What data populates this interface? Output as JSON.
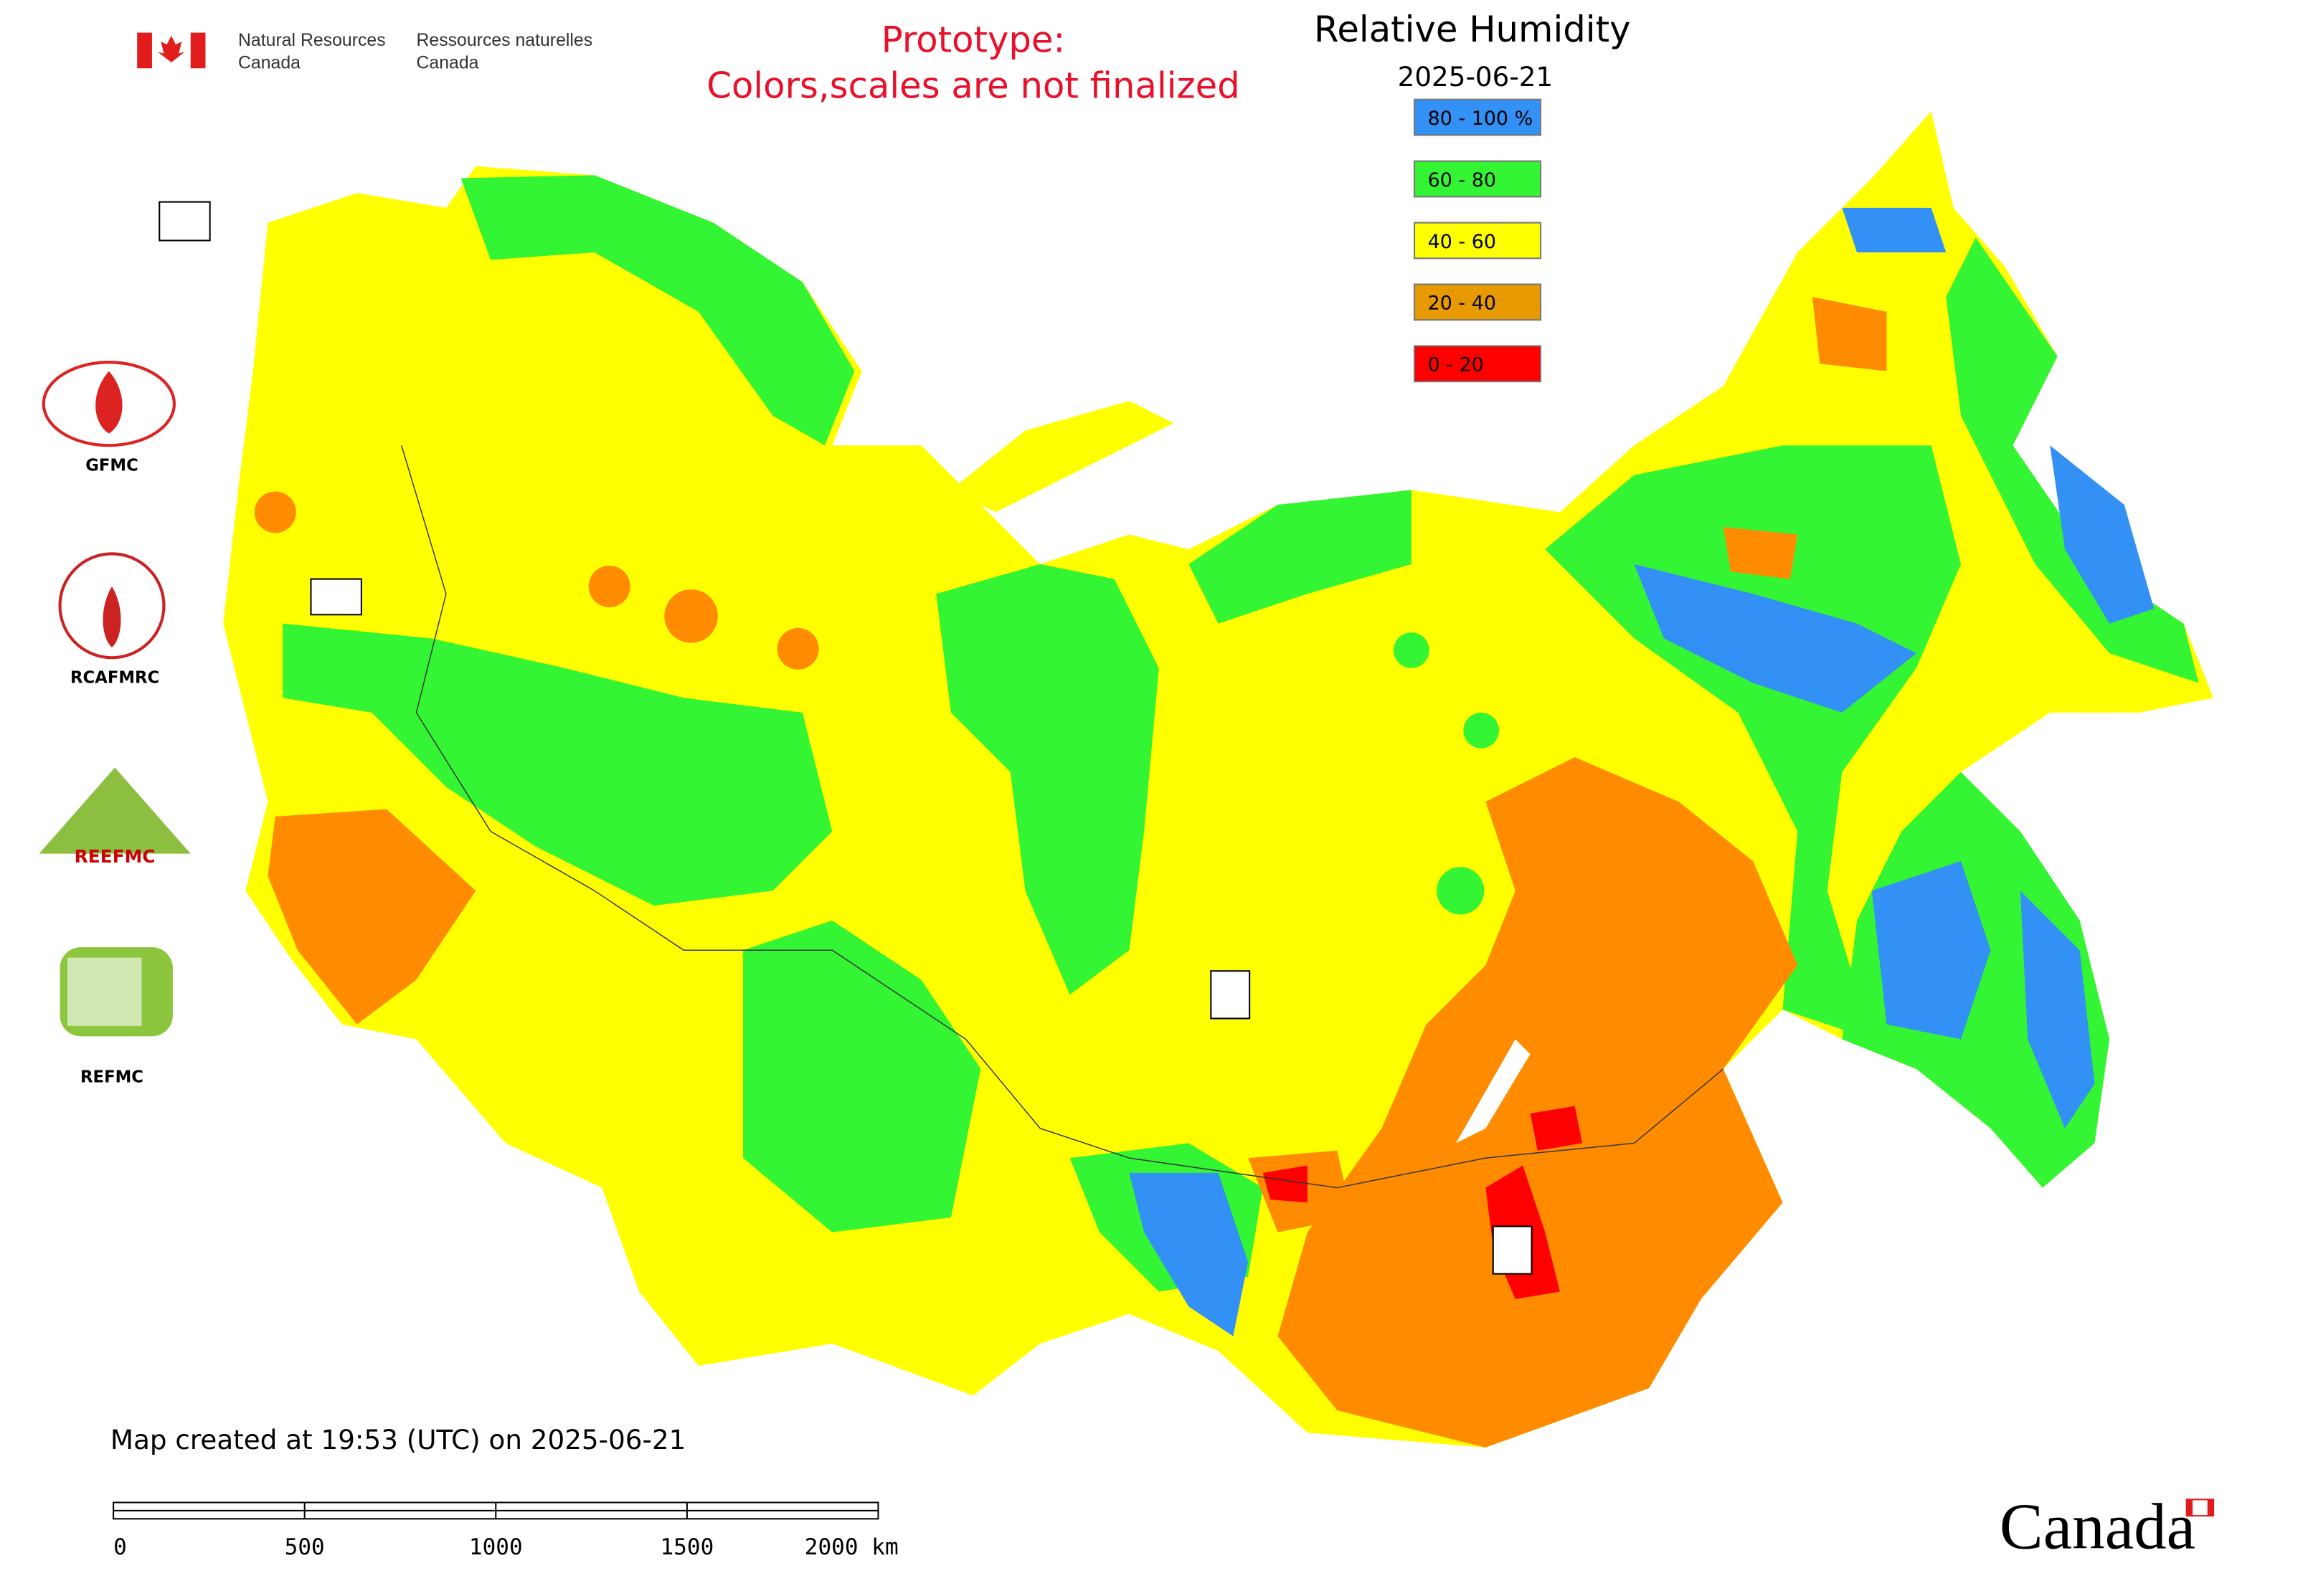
{
  "header": {
    "agency_en": [
      "Natural Resources",
      "Canada"
    ],
    "agency_fr": [
      "Ressources naturelles",
      "Canada"
    ],
    "notice": [
      "Prototype:",
      "Colors,scales are not finalized"
    ]
  },
  "legend": {
    "title": "Relative Humidity",
    "date": "2025-06-21",
    "items": [
      {
        "label": "80 - 100 %",
        "color": "#3390f5"
      },
      {
        "label": "60 - 80",
        "color": "#33f533"
      },
      {
        "label": "40 - 60",
        "color": "#ffff00"
      },
      {
        "label": "20 - 40",
        "color": "#e69a00"
      },
      {
        "label": "0 - 20",
        "color": "#ff0000"
      }
    ]
  },
  "map": {
    "moderate_dry_color": "#ff8c00"
  },
  "logos": {
    "labels": [
      "GFMC",
      "RCAFMRC",
      "REFMC"
    ],
    "reefmc_text": "REEFMC"
  },
  "footer": {
    "created": "Map created at 19:53 (UTC) on 2025-06-21",
    "scale_labels": [
      "0",
      "500",
      "1000",
      "1500",
      "2000 km"
    ],
    "wordmark": "Canada"
  }
}
